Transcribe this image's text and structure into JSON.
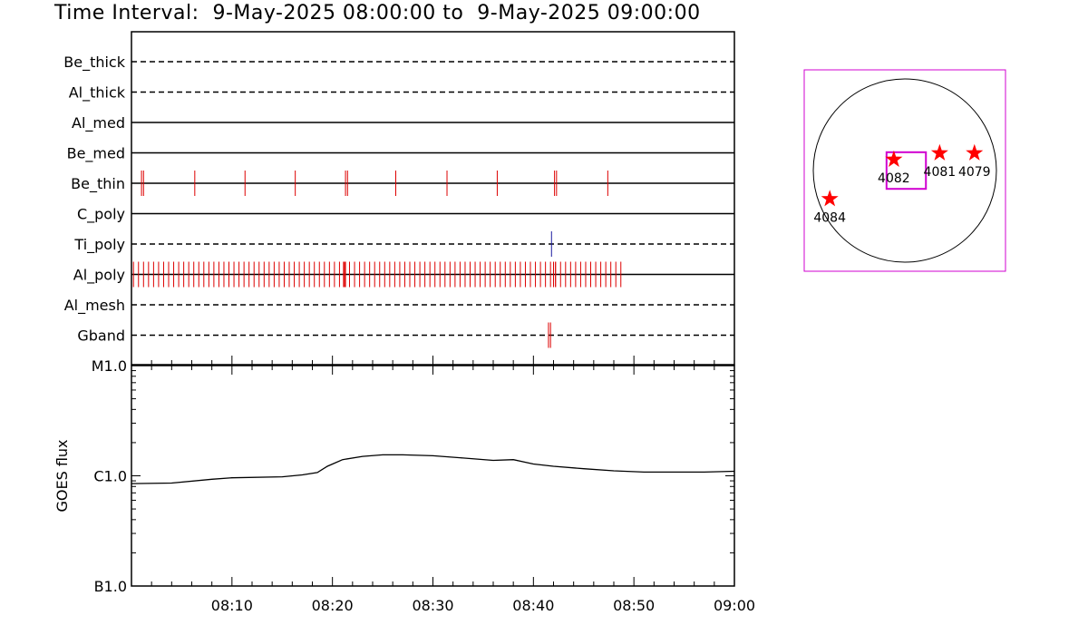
{
  "header": {
    "title": "Time Interval:  9-May-2025 08:00:00 to  9-May-2025 09:00:00"
  },
  "chart_data": [
    {
      "type": "timeline",
      "x_unit": "minutes after 08:00",
      "xlim": [
        0,
        60
      ],
      "rows": [
        {
          "label": "Be_thick",
          "baseline": "dashed",
          "color": "#000000",
          "events": []
        },
        {
          "label": "Al_thick",
          "baseline": "dashed",
          "color": "#000000",
          "events": []
        },
        {
          "label": "Al_med",
          "baseline": "solid",
          "color": "#000000",
          "events": []
        },
        {
          "label": "Be_med",
          "baseline": "solid",
          "color": "#000000",
          "events": []
        },
        {
          "label": "Be_thin",
          "baseline": "solid",
          "color": "#dd0000",
          "events": [
            1.0,
            1.2,
            6.3,
            11.3,
            16.3,
            21.3,
            21.5,
            26.3,
            31.4,
            36.4,
            42.1,
            42.3,
            47.4
          ]
        },
        {
          "label": "C_poly",
          "baseline": "solid",
          "color": "#000000",
          "events": []
        },
        {
          "label": "Ti_poly",
          "baseline": "dashed",
          "color": "#1a1aa0",
          "events": [
            41.8
          ]
        },
        {
          "label": "Al_poly",
          "baseline": "solid",
          "color": "#dd0000",
          "events_start": 0.2,
          "events_end": 48.8,
          "events_step": 0.5,
          "extra_events": [
            21.1,
            21.3,
            42.0,
            42.2
          ]
        },
        {
          "label": "Al_mesh",
          "baseline": "dashed",
          "color": "#000000",
          "events": []
        },
        {
          "label": "Gband",
          "baseline": "dashed",
          "color": "#dd0000",
          "events": [
            41.5,
            41.7
          ]
        }
      ]
    },
    {
      "type": "line",
      "ylabel": "GOES flux",
      "yscale": "log",
      "ylim": [
        1e-07,
        1e-05
      ],
      "yticks": [
        {
          "value": 1e-05,
          "label": "M1.0"
        },
        {
          "value": 1e-06,
          "label": "C1.0"
        },
        {
          "value": 1e-07,
          "label": "B1.0"
        }
      ],
      "xlim": [
        0,
        60
      ],
      "xticks": [
        {
          "value": 10,
          "label": "08:10"
        },
        {
          "value": 20,
          "label": "08:20"
        },
        {
          "value": 30,
          "label": "08:30"
        },
        {
          "value": 40,
          "label": "08:40"
        },
        {
          "value": 50,
          "label": "08:50"
        },
        {
          "value": 60,
          "label": "09:00"
        }
      ],
      "series": [
        {
          "color": "#000000",
          "x": [
            0,
            4,
            8,
            10,
            15,
            17,
            18.5,
            19.5,
            21,
            23,
            25,
            27,
            30,
            33,
            36,
            38,
            40,
            42,
            45,
            48,
            51,
            54,
            57,
            60
          ],
          "y": [
            8.5e-07,
            8.6e-07,
            9.3e-07,
            9.6e-07,
            9.8e-07,
            1.02e-06,
            1.07e-06,
            1.22e-06,
            1.4e-06,
            1.5e-06,
            1.55e-06,
            1.55e-06,
            1.52e-06,
            1.45e-06,
            1.38e-06,
            1.4e-06,
            1.28e-06,
            1.22e-06,
            1.16e-06,
            1.11e-06,
            1.08e-06,
            1.08e-06,
            1.08e-06,
            1.1e-06
          ]
        }
      ]
    },
    {
      "type": "scatter",
      "xlim": [
        -1,
        1
      ],
      "ylim": [
        -1,
        1
      ],
      "disk": true,
      "points": [
        {
          "label": "4084",
          "x": -0.82,
          "y": -0.31,
          "color": "#ff0000"
        },
        {
          "label": "4082",
          "x": -0.12,
          "y": 0.12,
          "color": "#ff0000"
        },
        {
          "label": "4081",
          "x": 0.38,
          "y": 0.19,
          "color": "#ff0000"
        },
        {
          "label": "4079",
          "x": 0.76,
          "y": 0.19,
          "color": "#ff0000"
        }
      ],
      "highlight_box": {
        "x0": -0.2,
        "x1": 0.23,
        "y0": -0.2,
        "y1": 0.2,
        "color": "#d000d0"
      },
      "frame_color": "#d000d0"
    }
  ]
}
